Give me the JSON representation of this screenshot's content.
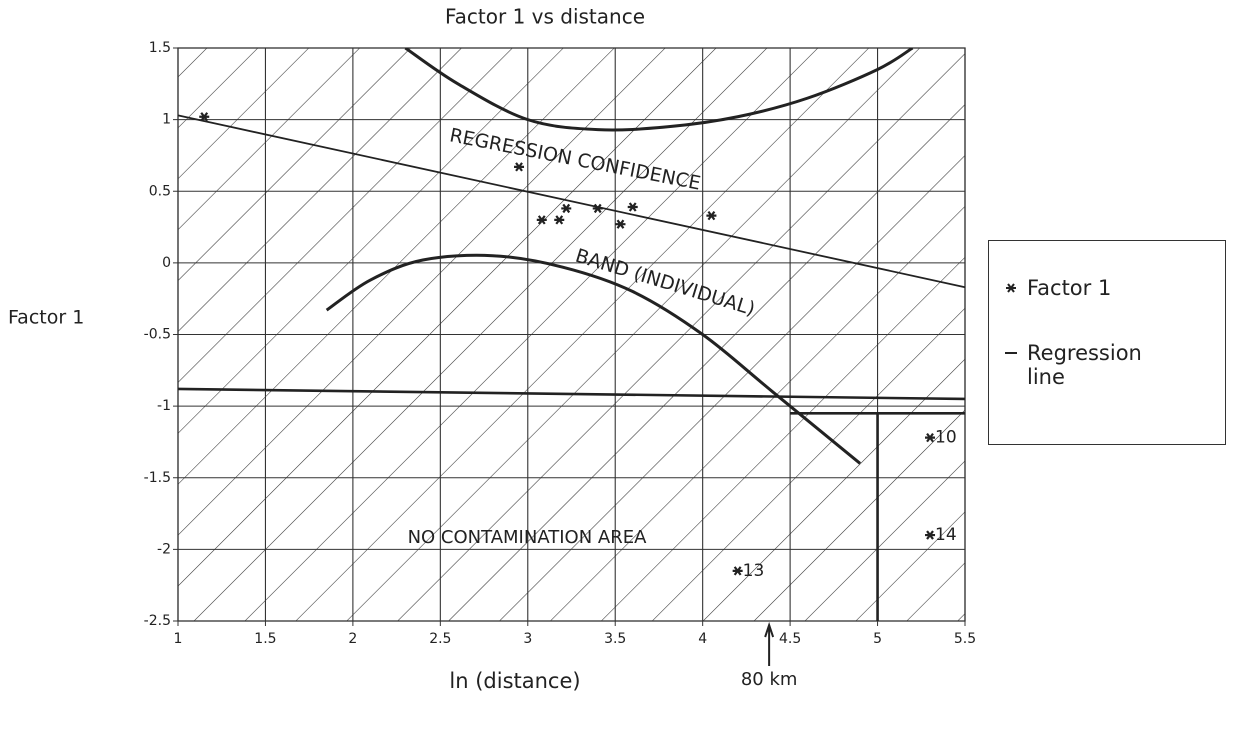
{
  "chart_data": {
    "type": "scatter",
    "title": "Factor 1 vs distance",
    "x_label": "ln (distance)",
    "y_label": "Factor 1",
    "xlim": [
      1,
      5.5
    ],
    "xticks": [
      1,
      1.5,
      2,
      2.5,
      3,
      3.5,
      4,
      4.5,
      5,
      5.5
    ],
    "ylim": [
      -2.5,
      1.5
    ],
    "yticks": [
      -2.5,
      -2,
      -1.5,
      -1,
      -0.5,
      0,
      0.5,
      1,
      1.5
    ],
    "grid": true,
    "hatched": true,
    "legend": "right",
    "series": [
      {
        "name": "Factor 1",
        "kind": "points",
        "color": "#222222",
        "x": [
          1.15,
          2.95,
          3.08,
          3.18,
          3.22,
          3.4,
          3.53,
          3.6,
          4.05,
          4.2,
          5.3,
          5.3
        ],
        "values": [
          1.02,
          0.67,
          0.3,
          0.3,
          0.38,
          0.38,
          0.27,
          0.39,
          0.33,
          -2.15,
          -1.22,
          -1.9
        ],
        "point_labels": [
          null,
          null,
          null,
          null,
          null,
          null,
          null,
          null,
          null,
          "13",
          "10",
          "14"
        ]
      },
      {
        "name": "Regression line",
        "kind": "line",
        "color": "#222222",
        "x": [
          1,
          5.5
        ],
        "values": [
          1.03,
          -0.17
        ]
      }
    ],
    "confidence_band": {
      "color": "#222222",
      "upper": {
        "x": [
          2.3,
          2.6,
          3.0,
          3.4,
          3.8,
          4.2,
          4.6,
          5.0,
          5.2
        ],
        "values": [
          1.5,
          1.25,
          1.0,
          0.93,
          0.95,
          1.02,
          1.15,
          1.35,
          1.5
        ]
      },
      "lower": {
        "x": [
          1.85,
          2.1,
          2.4,
          2.8,
          3.2,
          3.6,
          4.0,
          4.4,
          4.9
        ],
        "values": [
          -0.33,
          -0.12,
          0.02,
          0.05,
          -0.03,
          -0.2,
          -0.5,
          -0.9,
          -1.4
        ]
      }
    },
    "boundary_lines": [
      {
        "x": [
          1,
          5.5
        ],
        "values": [
          -0.88,
          -0.95
        ]
      },
      {
        "x": [
          4.5,
          5.5
        ],
        "values": [
          -1.05,
          -1.05
        ]
      },
      {
        "x": [
          5,
          5
        ],
        "values": [
          -1.05,
          -2.5
        ]
      }
    ],
    "annotations": [
      {
        "text": "REGRESSION CONFIDENCE"
      },
      {
        "text": "BAND (INDIVIDUAL)"
      },
      {
        "text": "NO CONTAMINATION AREA"
      },
      {
        "text": "80 km",
        "x": 4.38
      }
    ]
  }
}
